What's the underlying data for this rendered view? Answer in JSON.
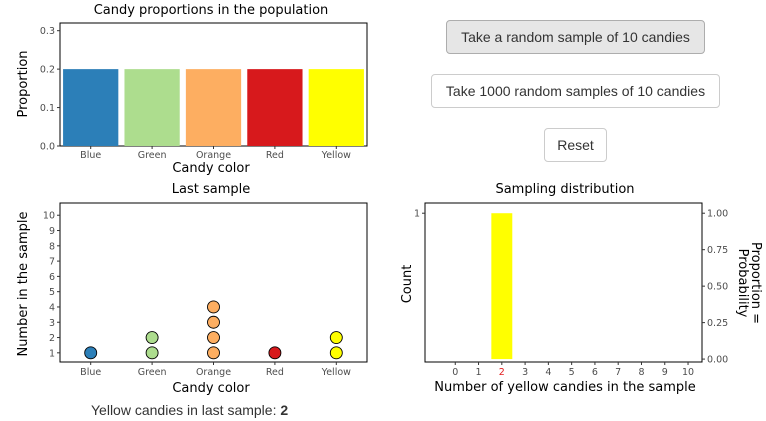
{
  "buttons": {
    "sample_one": "Take a random sample of 10 candies",
    "sample_1000": "Take 1000 random samples of 10 candies",
    "reset": "Reset"
  },
  "summary": {
    "label": "Yellow candies in last sample:",
    "value": "2"
  },
  "chart_data": [
    {
      "type": "bar",
      "title": "Candy proportions in the population",
      "xlabel": "Candy color",
      "ylabel": "Proportion",
      "categories": [
        "Blue",
        "Green",
        "Orange",
        "Red",
        "Yellow"
      ],
      "values": [
        0.2,
        0.2,
        0.2,
        0.2,
        0.2
      ],
      "colors": [
        "#2c7fb8",
        "#addd8e",
        "#fdae61",
        "#d7191c",
        "#ffff00"
      ],
      "ylim": [
        0,
        0.32
      ],
      "yticks": [
        "0.0",
        "0.1",
        "0.2",
        "0.3"
      ],
      "grid": false
    },
    {
      "type": "scatter",
      "title": "Last sample",
      "xlabel": "Candy color",
      "ylabel": "Number in the sample",
      "categories": [
        "Blue",
        "Green",
        "Orange",
        "Red",
        "Yellow"
      ],
      "values": [
        1,
        2,
        4,
        1,
        2
      ],
      "colors": [
        "#2c7fb8",
        "#addd8e",
        "#fdae61",
        "#d7191c",
        "#ffff00"
      ],
      "ylim": [
        0.4,
        10.8
      ],
      "yticks": [
        "1",
        "2",
        "3",
        "4",
        "5",
        "6",
        "7",
        "8",
        "9",
        "10"
      ],
      "grid": false
    },
    {
      "type": "bar",
      "title": "Sampling distribution",
      "xlabel": "Number of yellow candies in the sample",
      "ylabel": "Count",
      "y2label": "Proportion = Probability",
      "x": [
        0,
        1,
        2,
        3,
        4,
        5,
        6,
        7,
        8,
        9,
        10
      ],
      "xticks": [
        "0",
        "1",
        "2",
        "3",
        "4",
        "5",
        "6",
        "7",
        "8",
        "9",
        "10"
      ],
      "highlight_tick": "2",
      "highlight_color": "#e31a1c",
      "bars": [
        {
          "x": 2,
          "count": 1
        }
      ],
      "bar_color": "#ffff00",
      "yticks_left": [
        "1"
      ],
      "yticks_right": [
        "0.00",
        "0.25",
        "0.50",
        "0.75",
        "1.00"
      ],
      "grid": false
    }
  ]
}
